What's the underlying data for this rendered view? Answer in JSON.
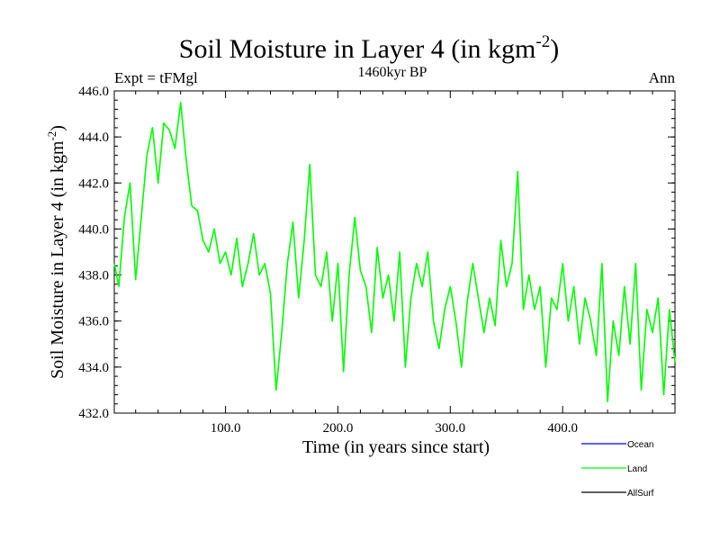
{
  "chart_data": {
    "type": "line",
    "title": "Soil Moisture in Layer 4 (in kgm",
    "title_sup": "-2",
    "title_close": ")",
    "subtitle": "1460kyr BP",
    "left_label": "Expt = tFMgl",
    "right_label": "Ann",
    "xlabel": "Time (in years since start)",
    "ylabel": "Soil Moisture in Layer 4 (in kgm",
    "ylabel_sup": "-2",
    "ylabel_close": ")",
    "xlim": [
      1,
      500
    ],
    "ylim": [
      432,
      446
    ],
    "x_ticks": [
      100,
      200,
      300,
      400
    ],
    "x_tick_labels": [
      "100.0",
      "200.0",
      "300.0",
      "400.0"
    ],
    "y_ticks": [
      432,
      434,
      436,
      438,
      440,
      442,
      444,
      446
    ],
    "y_tick_labels": [
      "432.0",
      "434.0",
      "436.0",
      "438.0",
      "440.0",
      "442.0",
      "444.0",
      "446.0"
    ],
    "legend": [
      {
        "name": "Ocean",
        "color": "#0000ff"
      },
      {
        "name": "Land",
        "color": "#00ff00"
      },
      {
        "name": "AllSurf",
        "color": "#000000"
      }
    ],
    "series": [
      {
        "name": "Land",
        "color": "#00ff00",
        "x": [
          1,
          5,
          10,
          15,
          20,
          25,
          30,
          35,
          40,
          45,
          50,
          55,
          60,
          65,
          70,
          75,
          80,
          85,
          90,
          95,
          100,
          105,
          110,
          115,
          120,
          125,
          130,
          135,
          140,
          145,
          150,
          155,
          160,
          165,
          170,
          175,
          180,
          185,
          190,
          195,
          200,
          205,
          210,
          215,
          220,
          225,
          230,
          235,
          240,
          245,
          250,
          255,
          260,
          265,
          270,
          275,
          280,
          285,
          290,
          295,
          300,
          305,
          310,
          315,
          320,
          325,
          330,
          335,
          340,
          345,
          350,
          355,
          360,
          365,
          370,
          375,
          380,
          385,
          390,
          395,
          400,
          405,
          410,
          415,
          420,
          425,
          430,
          435,
          440,
          445,
          450,
          455,
          460,
          465,
          470,
          475,
          480,
          485,
          490,
          495,
          500
        ],
        "values": [
          438.5,
          437.5,
          440.5,
          442.0,
          437.8,
          440.5,
          443.2,
          444.4,
          442.0,
          444.6,
          444.3,
          443.5,
          445.5,
          443.0,
          441.0,
          440.8,
          439.5,
          439.0,
          440.0,
          438.5,
          439.0,
          438.0,
          439.6,
          437.5,
          438.5,
          439.8,
          438.0,
          438.5,
          437.2,
          433.0,
          435.5,
          438.5,
          440.3,
          437.0,
          439.5,
          442.8,
          438.0,
          437.5,
          439.0,
          436.0,
          438.5,
          433.8,
          438.0,
          440.5,
          438.2,
          437.5,
          435.5,
          439.2,
          437.0,
          438.0,
          436.0,
          439.0,
          434.0,
          437.0,
          438.5,
          437.5,
          439.0,
          436.0,
          434.8,
          436.5,
          437.5,
          436.0,
          434.0,
          436.8,
          438.5,
          437.0,
          435.5,
          437.0,
          435.8,
          439.5,
          437.5,
          438.5,
          442.5,
          436.5,
          438.0,
          436.5,
          437.5,
          434.0,
          437.0,
          436.5,
          438.5,
          436.0,
          437.5,
          435.0,
          437.0,
          436.0,
          434.5,
          438.5,
          432.5,
          436.0,
          434.5,
          437.5,
          435.0,
          438.5,
          433.0,
          436.5,
          435.5,
          437.0,
          432.8,
          436.5,
          434.2
        ]
      }
    ]
  }
}
